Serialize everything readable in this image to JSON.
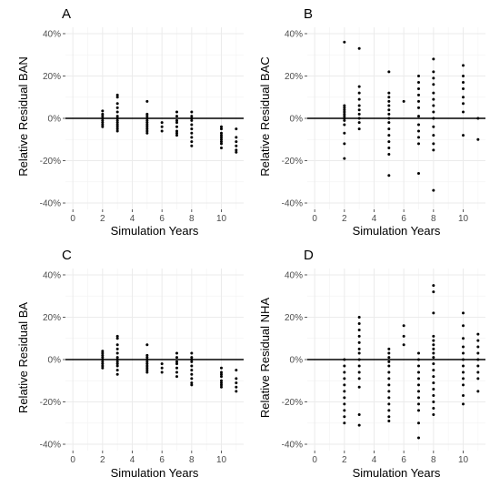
{
  "chart_data": [
    {
      "panel": "A",
      "type": "scatter",
      "xlabel": "Simulation Years",
      "ylabel": "Relative Residual BAN",
      "xlim": [
        -0.5,
        11.5
      ],
      "ylim": [
        -43,
        43
      ],
      "x_ticks": [
        0,
        2,
        4,
        6,
        8,
        10
      ],
      "y_ticks": [
        -40,
        -20,
        0,
        20,
        40
      ],
      "y_tick_labels": [
        "-40%",
        "-20%",
        "0%",
        "20%",
        "40%"
      ],
      "grid": true,
      "points": [
        [
          2,
          3.5
        ],
        [
          2,
          2
        ],
        [
          2,
          1
        ],
        [
          2,
          0
        ],
        [
          2,
          -1
        ],
        [
          2,
          -2
        ],
        [
          2,
          -3
        ],
        [
          2,
          -4
        ],
        [
          3,
          11
        ],
        [
          3,
          10
        ],
        [
          3,
          7
        ],
        [
          3,
          5
        ],
        [
          3,
          3
        ],
        [
          3,
          1
        ],
        [
          3,
          0
        ],
        [
          3,
          -1
        ],
        [
          3,
          -2
        ],
        [
          3,
          -3
        ],
        [
          3,
          -4
        ],
        [
          3,
          -5
        ],
        [
          3,
          -6
        ],
        [
          5,
          8
        ],
        [
          5,
          2
        ],
        [
          5,
          1
        ],
        [
          5,
          0
        ],
        [
          5,
          -1
        ],
        [
          5,
          -2
        ],
        [
          5,
          -3
        ],
        [
          5,
          -4
        ],
        [
          5,
          -5
        ],
        [
          5,
          -6
        ],
        [
          5,
          -7
        ],
        [
          6,
          -2
        ],
        [
          6,
          -4
        ],
        [
          6,
          -6
        ],
        [
          7,
          3
        ],
        [
          7,
          1
        ],
        [
          7,
          -1
        ],
        [
          7,
          -2
        ],
        [
          7,
          -4
        ],
        [
          7,
          -6
        ],
        [
          7,
          -7
        ],
        [
          7,
          -8
        ],
        [
          8,
          3
        ],
        [
          8,
          1
        ],
        [
          8,
          0
        ],
        [
          8,
          -1
        ],
        [
          8,
          -3
        ],
        [
          8,
          -5
        ],
        [
          8,
          -7
        ],
        [
          8,
          -9
        ],
        [
          8,
          -11
        ],
        [
          8,
          -13
        ],
        [
          10,
          -4
        ],
        [
          10,
          -5
        ],
        [
          10,
          -7
        ],
        [
          10,
          -8
        ],
        [
          10,
          -9
        ],
        [
          10,
          -10
        ],
        [
          10,
          -11
        ],
        [
          10,
          -12
        ],
        [
          10,
          -14
        ],
        [
          11,
          -5
        ],
        [
          11,
          -9
        ],
        [
          11,
          -11
        ],
        [
          11,
          -13
        ],
        [
          11,
          -15
        ],
        [
          11,
          -16
        ]
      ]
    },
    {
      "panel": "B",
      "type": "scatter",
      "xlabel": "Simulation Years",
      "ylabel": "Relative Residual BAC",
      "xlim": [
        -0.5,
        11.5
      ],
      "ylim": [
        -43,
        43
      ],
      "x_ticks": [
        0,
        2,
        4,
        6,
        8,
        10
      ],
      "y_ticks": [
        -40,
        -20,
        0,
        20,
        40
      ],
      "y_tick_labels": [
        "-40%",
        "-20%",
        "0%",
        "20%",
        "40%"
      ],
      "grid": true,
      "points": [
        [
          2,
          36
        ],
        [
          2,
          6
        ],
        [
          2,
          5
        ],
        [
          2,
          4
        ],
        [
          2,
          3
        ],
        [
          2,
          2
        ],
        [
          2,
          1
        ],
        [
          2,
          0
        ],
        [
          2,
          -1
        ],
        [
          2,
          -3
        ],
        [
          2,
          -7
        ],
        [
          2,
          -12
        ],
        [
          2,
          -19
        ],
        [
          3,
          33
        ],
        [
          3,
          15
        ],
        [
          3,
          12
        ],
        [
          3,
          9
        ],
        [
          3,
          6
        ],
        [
          3,
          4
        ],
        [
          3,
          2
        ],
        [
          3,
          0
        ],
        [
          3,
          -2
        ],
        [
          3,
          -5
        ],
        [
          5,
          22
        ],
        [
          5,
          12
        ],
        [
          5,
          10
        ],
        [
          5,
          8
        ],
        [
          5,
          6
        ],
        [
          5,
          4
        ],
        [
          5,
          2
        ],
        [
          5,
          0
        ],
        [
          5,
          -2
        ],
        [
          5,
          -5
        ],
        [
          5,
          -8
        ],
        [
          5,
          -11
        ],
        [
          5,
          -14
        ],
        [
          5,
          -17
        ],
        [
          5,
          -27
        ],
        [
          6,
          8
        ],
        [
          7,
          20
        ],
        [
          7,
          17
        ],
        [
          7,
          14
        ],
        [
          7,
          11
        ],
        [
          7,
          8
        ],
        [
          7,
          5
        ],
        [
          7,
          1
        ],
        [
          7,
          -3
        ],
        [
          7,
          -6
        ],
        [
          7,
          -9
        ],
        [
          7,
          -12
        ],
        [
          7,
          -26
        ],
        [
          8,
          28
        ],
        [
          8,
          22
        ],
        [
          8,
          19
        ],
        [
          8,
          16
        ],
        [
          8,
          12
        ],
        [
          8,
          9
        ],
        [
          8,
          6
        ],
        [
          8,
          3
        ],
        [
          8,
          0
        ],
        [
          8,
          -4
        ],
        [
          8,
          -8
        ],
        [
          8,
          -12
        ],
        [
          8,
          -15
        ],
        [
          8,
          -34
        ],
        [
          10,
          25
        ],
        [
          10,
          20
        ],
        [
          10,
          17
        ],
        [
          10,
          14
        ],
        [
          10,
          10
        ],
        [
          10,
          7
        ],
        [
          10,
          3
        ],
        [
          10,
          -8
        ],
        [
          11,
          0
        ],
        [
          11,
          -10
        ]
      ]
    },
    {
      "panel": "C",
      "type": "scatter",
      "xlabel": "Simulation Years",
      "ylabel": "Relative Residual BA",
      "xlim": [
        -0.5,
        11.5
      ],
      "ylim": [
        -43,
        43
      ],
      "x_ticks": [
        0,
        2,
        4,
        6,
        8,
        10
      ],
      "y_ticks": [
        -40,
        -20,
        0,
        20,
        40
      ],
      "y_tick_labels": [
        "-40%",
        "-20%",
        "0%",
        "20%",
        "40%"
      ],
      "grid": true,
      "points": [
        [
          2,
          4
        ],
        [
          2,
          3
        ],
        [
          2,
          2
        ],
        [
          2,
          1
        ],
        [
          2,
          0
        ],
        [
          2,
          -1
        ],
        [
          2,
          -2
        ],
        [
          2,
          -3
        ],
        [
          2,
          -4
        ],
        [
          3,
          11
        ],
        [
          3,
          10
        ],
        [
          3,
          7
        ],
        [
          3,
          5
        ],
        [
          3,
          3
        ],
        [
          3,
          1
        ],
        [
          3,
          0
        ],
        [
          3,
          -1
        ],
        [
          3,
          -2
        ],
        [
          3,
          -3
        ],
        [
          3,
          -5
        ],
        [
          3,
          -7
        ],
        [
          5,
          7
        ],
        [
          5,
          2
        ],
        [
          5,
          1
        ],
        [
          5,
          0
        ],
        [
          5,
          -1
        ],
        [
          5,
          -2
        ],
        [
          5,
          -3
        ],
        [
          5,
          -4
        ],
        [
          5,
          -5
        ],
        [
          5,
          -6
        ],
        [
          6,
          -2
        ],
        [
          6,
          -4
        ],
        [
          6,
          -6
        ],
        [
          7,
          3
        ],
        [
          7,
          1
        ],
        [
          7,
          -1
        ],
        [
          7,
          -2
        ],
        [
          7,
          -4
        ],
        [
          7,
          -6
        ],
        [
          7,
          -8
        ],
        [
          8,
          3
        ],
        [
          8,
          1
        ],
        [
          8,
          0
        ],
        [
          8,
          -1
        ],
        [
          8,
          -3
        ],
        [
          8,
          -5
        ],
        [
          8,
          -7
        ],
        [
          8,
          -9
        ],
        [
          8,
          -11
        ],
        [
          8,
          -12
        ],
        [
          10,
          -4
        ],
        [
          10,
          -6
        ],
        [
          10,
          -7
        ],
        [
          10,
          -8
        ],
        [
          10,
          -10
        ],
        [
          10,
          -11
        ],
        [
          10,
          -12
        ],
        [
          10,
          -13
        ],
        [
          11,
          -5
        ],
        [
          11,
          -9
        ],
        [
          11,
          -11
        ],
        [
          11,
          -13
        ],
        [
          11,
          -15
        ]
      ]
    },
    {
      "panel": "D",
      "type": "scatter",
      "xlabel": "Simulation Years",
      "ylabel": "Relative Residual NHA",
      "xlim": [
        -0.5,
        11.5
      ],
      "ylim": [
        -43,
        43
      ],
      "x_ticks": [
        0,
        2,
        4,
        6,
        8,
        10
      ],
      "y_ticks": [
        -40,
        -20,
        0,
        20,
        40
      ],
      "y_tick_labels": [
        "-40%",
        "-20%",
        "0%",
        "20%",
        "40%"
      ],
      "grid": true,
      "points": [
        [
          2,
          0
        ],
        [
          2,
          -3
        ],
        [
          2,
          -6
        ],
        [
          2,
          -9
        ],
        [
          2,
          -12
        ],
        [
          2,
          -15
        ],
        [
          2,
          -18
        ],
        [
          2,
          -21
        ],
        [
          2,
          -24
        ],
        [
          2,
          -27
        ],
        [
          2,
          -30
        ],
        [
          3,
          20
        ],
        [
          3,
          17
        ],
        [
          3,
          14
        ],
        [
          3,
          11
        ],
        [
          3,
          8
        ],
        [
          3,
          5
        ],
        [
          3,
          3
        ],
        [
          3,
          0
        ],
        [
          3,
          -3
        ],
        [
          3,
          -6
        ],
        [
          3,
          -9
        ],
        [
          3,
          -13
        ],
        [
          3,
          -26
        ],
        [
          3,
          -31
        ],
        [
          5,
          5
        ],
        [
          5,
          3
        ],
        [
          5,
          1
        ],
        [
          5,
          -1
        ],
        [
          5,
          -3
        ],
        [
          5,
          -6
        ],
        [
          5,
          -9
        ],
        [
          5,
          -12
        ],
        [
          5,
          -15
        ],
        [
          5,
          -18
        ],
        [
          5,
          -21
        ],
        [
          5,
          -24
        ],
        [
          5,
          -27
        ],
        [
          5,
          -29
        ],
        [
          6,
          16
        ],
        [
          6,
          11
        ],
        [
          6,
          7
        ],
        [
          7,
          3
        ],
        [
          7,
          0
        ],
        [
          7,
          -3
        ],
        [
          7,
          -6
        ],
        [
          7,
          -9
        ],
        [
          7,
          -12
        ],
        [
          7,
          -15
        ],
        [
          7,
          -18
        ],
        [
          7,
          -21
        ],
        [
          7,
          -24
        ],
        [
          7,
          -30
        ],
        [
          7,
          -37
        ],
        [
          8,
          35
        ],
        [
          8,
          32
        ],
        [
          8,
          22
        ],
        [
          8,
          11
        ],
        [
          8,
          9
        ],
        [
          8,
          7
        ],
        [
          8,
          5
        ],
        [
          8,
          3
        ],
        [
          8,
          1
        ],
        [
          8,
          -2
        ],
        [
          8,
          -5
        ],
        [
          8,
          -8
        ],
        [
          8,
          -11
        ],
        [
          8,
          -14
        ],
        [
          8,
          -17
        ],
        [
          8,
          -20
        ],
        [
          8,
          -23
        ],
        [
          8,
          -26
        ],
        [
          10,
          22
        ],
        [
          10,
          16
        ],
        [
          10,
          10
        ],
        [
          10,
          6
        ],
        [
          10,
          3
        ],
        [
          10,
          0
        ],
        [
          10,
          -3
        ],
        [
          10,
          -6
        ],
        [
          10,
          -9
        ],
        [
          10,
          -12
        ],
        [
          10,
          -17
        ],
        [
          10,
          -21
        ],
        [
          11,
          12
        ],
        [
          11,
          9
        ],
        [
          11,
          6
        ],
        [
          11,
          3
        ],
        [
          11,
          0
        ],
        [
          11,
          -3
        ],
        [
          11,
          -6
        ],
        [
          11,
          -9
        ],
        [
          11,
          -15
        ]
      ]
    }
  ]
}
